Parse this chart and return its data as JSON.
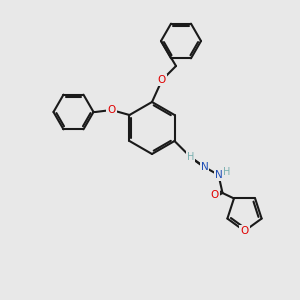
{
  "bg_color": "#e8e8e8",
  "bond_color": "#1a1a1a",
  "atom_colors": {
    "O": "#e00000",
    "N": "#1e4db5",
    "H": "#7ab0b0",
    "C": "#1a1a1a"
  },
  "lw": 1.5,
  "font_size": 7.5
}
